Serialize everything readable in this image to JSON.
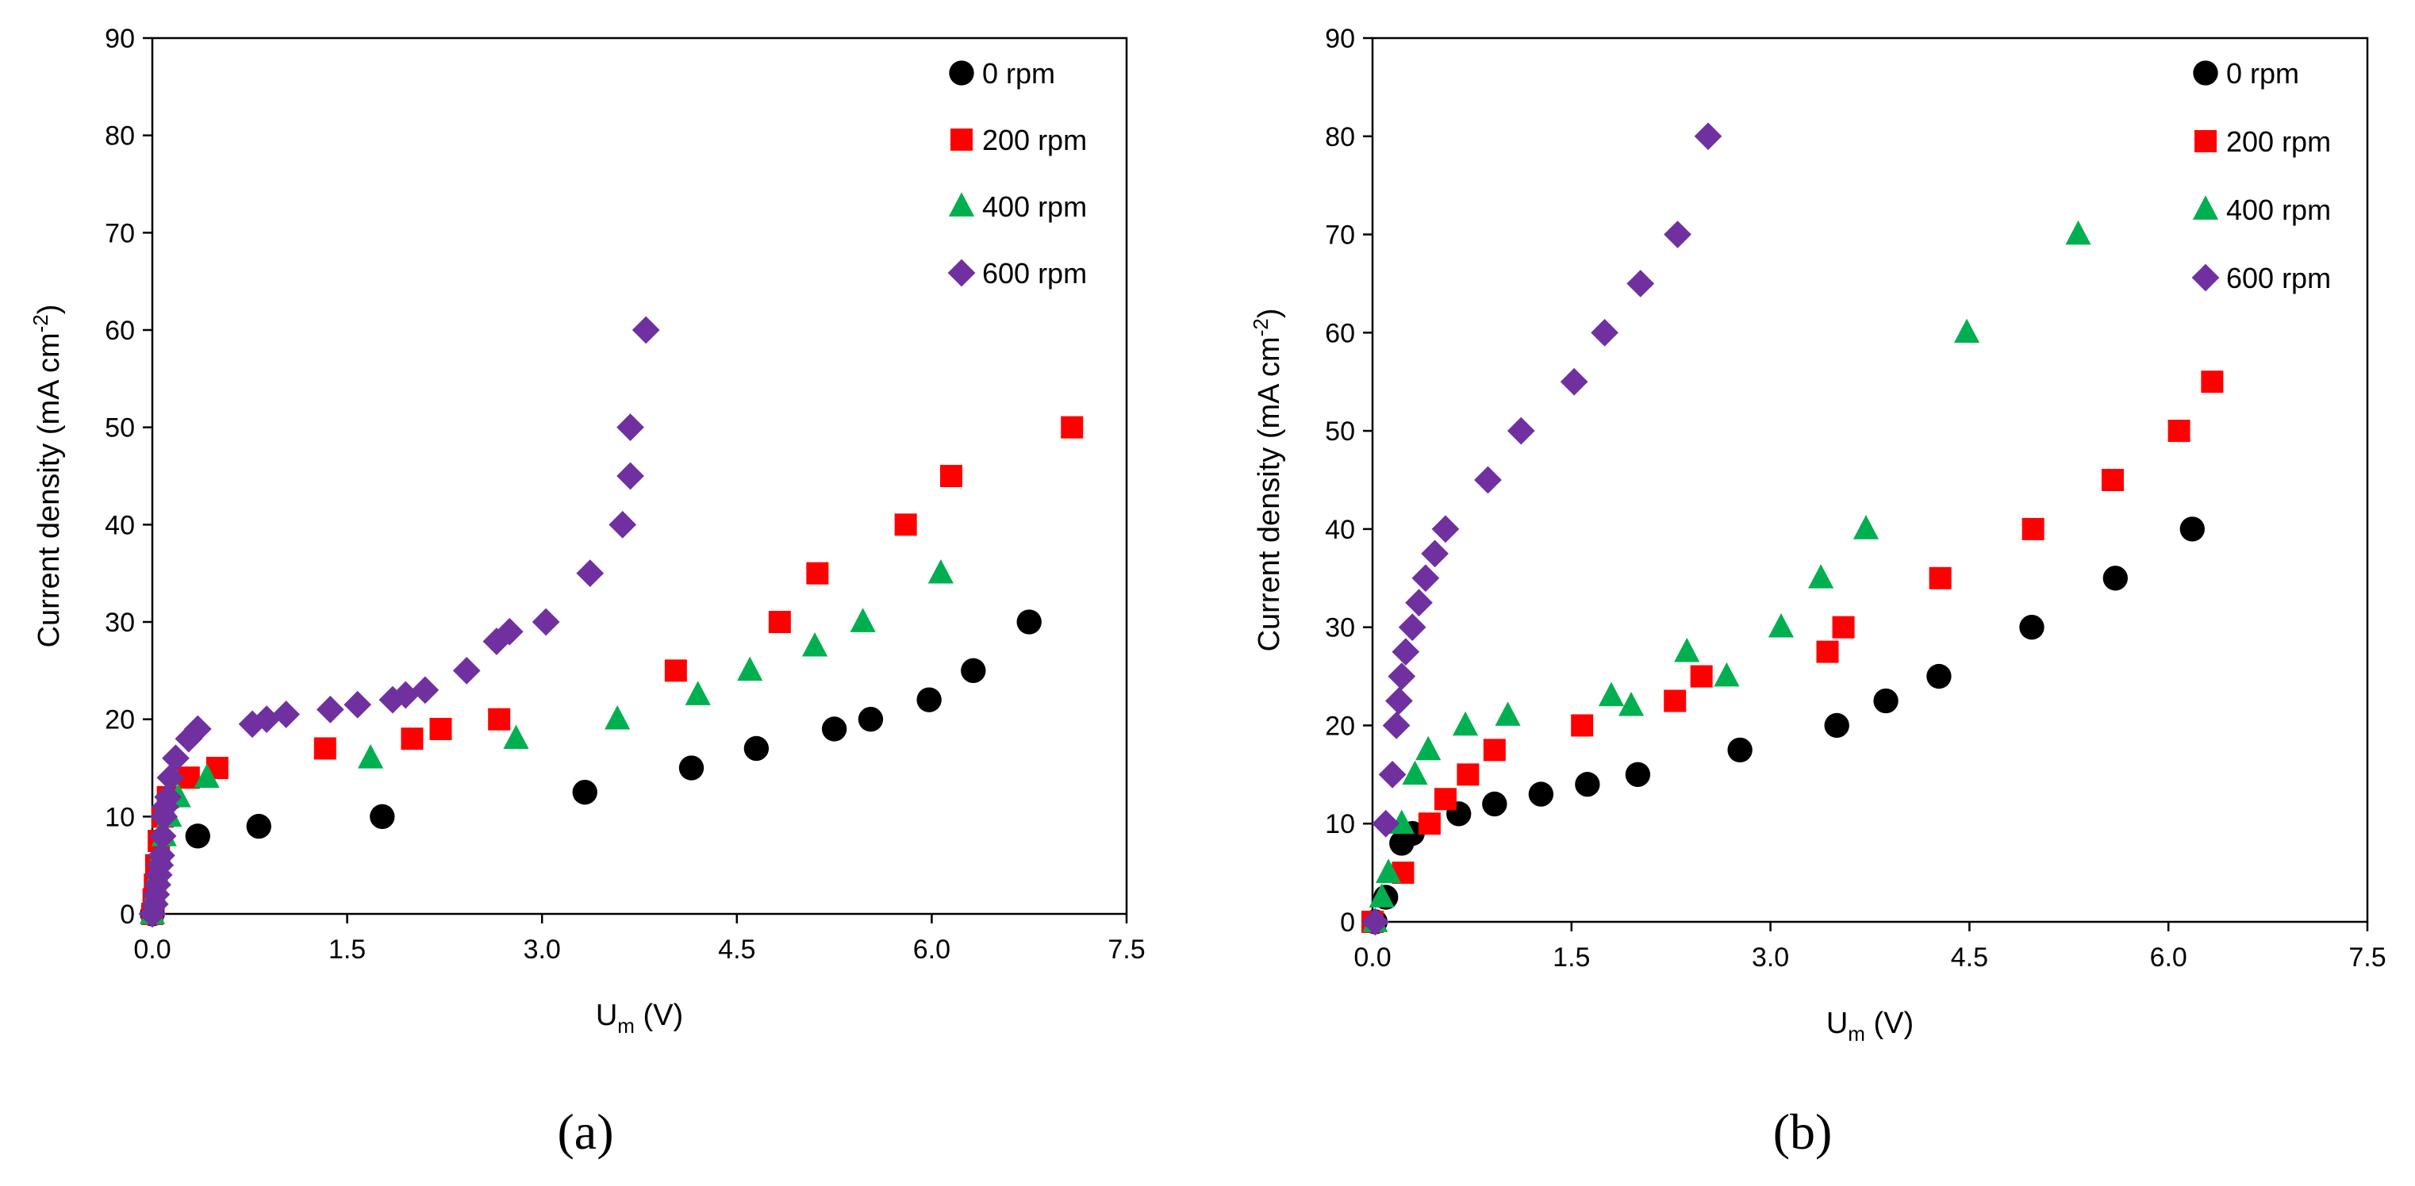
{
  "chart_data": [
    {
      "type": "scatter",
      "panel_label": "(a)",
      "xlabel_main": "U",
      "xlabel_sub": "m",
      "xlabel_tail": " (V)",
      "ylabel_main": "Current density (mA cm",
      "ylabel_sup": "-2",
      "ylabel_tail": ")",
      "xlim": [
        0,
        7.5
      ],
      "ylim": [
        0,
        90
      ],
      "xticks": [
        "0.0",
        "1.5",
        "3.0",
        "4.5",
        "6.0",
        "7.5"
      ],
      "yticks": [
        "0",
        "10",
        "20",
        "30",
        "40",
        "50",
        "60",
        "70",
        "80",
        "90"
      ],
      "legend": "top-right",
      "grid": false,
      "series": [
        {
          "name": "0 rpm",
          "marker": "circle",
          "color": "#000000",
          "points": [
            [
              0.0,
              0
            ],
            [
              0.35,
              8
            ],
            [
              0.82,
              9
            ],
            [
              1.77,
              10
            ],
            [
              3.33,
              12.5
            ],
            [
              4.15,
              15
            ],
            [
              4.65,
              17
            ],
            [
              5.25,
              19
            ],
            [
              5.53,
              20
            ],
            [
              5.98,
              22
            ],
            [
              6.32,
              25
            ],
            [
              6.75,
              30
            ]
          ]
        },
        {
          "name": "200 rpm",
          "marker": "square",
          "color": "#ff0000",
          "points": [
            [
              0.0,
              0
            ],
            [
              0.01,
              1.5
            ],
            [
              0.02,
              3
            ],
            [
              0.03,
              5
            ],
            [
              0.05,
              7.5
            ],
            [
              0.08,
              10
            ],
            [
              0.12,
              12
            ],
            [
              0.28,
              14
            ],
            [
              0.5,
              15
            ],
            [
              1.33,
              17
            ],
            [
              2.0,
              18
            ],
            [
              2.22,
              19
            ],
            [
              2.67,
              20
            ],
            [
              4.03,
              25
            ],
            [
              4.83,
              30
            ],
            [
              5.12,
              35
            ],
            [
              5.8,
              40
            ],
            [
              6.15,
              45
            ],
            [
              7.08,
              50
            ]
          ]
        },
        {
          "name": "400 rpm",
          "marker": "triangle",
          "color": "#00b050",
          "points": [
            [
              0.0,
              0
            ],
            [
              0.02,
              2
            ],
            [
              0.04,
              4
            ],
            [
              0.06,
              6
            ],
            [
              0.09,
              8
            ],
            [
              0.13,
              10
            ],
            [
              0.2,
              12
            ],
            [
              0.42,
              14
            ],
            [
              1.68,
              16
            ],
            [
              2.8,
              18
            ],
            [
              3.58,
              20
            ],
            [
              4.2,
              22.5
            ],
            [
              4.6,
              25
            ],
            [
              5.1,
              27.5
            ],
            [
              5.47,
              30
            ],
            [
              6.07,
              35
            ]
          ]
        },
        {
          "name": "600 rpm",
          "marker": "diamond",
          "color": "#7030a0",
          "points": [
            [
              0.0,
              0
            ],
            [
              0.02,
              1
            ],
            [
              0.03,
              2
            ],
            [
              0.04,
              3
            ],
            [
              0.05,
              4
            ],
            [
              0.06,
              5
            ],
            [
              0.07,
              6
            ],
            [
              0.08,
              8
            ],
            [
              0.09,
              10
            ],
            [
              0.1,
              11
            ],
            [
              0.12,
              12
            ],
            [
              0.14,
              14
            ],
            [
              0.18,
              16
            ],
            [
              0.28,
              18
            ],
            [
              0.35,
              19
            ],
            [
              0.77,
              19.5
            ],
            [
              0.88,
              20
            ],
            [
              1.03,
              20.5
            ],
            [
              1.37,
              21
            ],
            [
              1.58,
              21.5
            ],
            [
              1.85,
              22
            ],
            [
              1.95,
              22.5
            ],
            [
              2.1,
              23
            ],
            [
              2.42,
              25
            ],
            [
              2.65,
              28
            ],
            [
              2.75,
              29
            ],
            [
              3.03,
              30
            ],
            [
              3.37,
              35
            ],
            [
              3.62,
              40
            ],
            [
              3.68,
              45
            ],
            [
              3.68,
              50
            ],
            [
              3.8,
              60
            ]
          ]
        }
      ]
    },
    {
      "type": "scatter",
      "panel_label": "(b)",
      "xlabel_main": "U",
      "xlabel_sub": "m",
      "xlabel_tail": " (V)",
      "ylabel_main": "Current density (mA cm",
      "ylabel_sup": "-2",
      "ylabel_tail": ")",
      "xlim": [
        0,
        7.5
      ],
      "ylim": [
        0,
        90
      ],
      "xticks": [
        "0.0",
        "1.5",
        "3.0",
        "4.5",
        "6.0",
        "7.5"
      ],
      "yticks": [
        "0",
        "10",
        "20",
        "30",
        "40",
        "50",
        "60",
        "70",
        "80",
        "90"
      ],
      "legend": "top-right",
      "grid": false,
      "series": [
        {
          "name": "0 rpm",
          "marker": "circle",
          "color": "#000000",
          "points": [
            [
              0.02,
              0
            ],
            [
              0.1,
              2.5
            ],
            [
              0.22,
              8
            ],
            [
              0.3,
              9
            ],
            [
              0.65,
              11
            ],
            [
              0.92,
              12
            ],
            [
              1.27,
              13
            ],
            [
              1.62,
              14
            ],
            [
              2.0,
              15
            ],
            [
              2.77,
              17.5
            ],
            [
              3.5,
              20
            ],
            [
              3.87,
              22.5
            ],
            [
              4.27,
              25
            ],
            [
              4.97,
              30
            ],
            [
              5.6,
              35
            ],
            [
              6.18,
              40
            ]
          ]
        },
        {
          "name": "200 rpm",
          "marker": "square",
          "color": "#ff0000",
          "points": [
            [
              0.0,
              0
            ],
            [
              0.23,
              5
            ],
            [
              0.43,
              10
            ],
            [
              0.55,
              12.5
            ],
            [
              0.72,
              15
            ],
            [
              0.92,
              17.5
            ],
            [
              1.58,
              20
            ],
            [
              2.28,
              22.5
            ],
            [
              2.48,
              25
            ],
            [
              3.43,
              27.5
            ],
            [
              3.55,
              30
            ],
            [
              4.28,
              35
            ],
            [
              4.98,
              40
            ],
            [
              5.58,
              45
            ],
            [
              6.08,
              50
            ],
            [
              6.33,
              55
            ]
          ]
        },
        {
          "name": "400 rpm",
          "marker": "triangle",
          "color": "#00b050",
          "points": [
            [
              0.02,
              0
            ],
            [
              0.07,
              2.5
            ],
            [
              0.12,
              5
            ],
            [
              0.22,
              10
            ],
            [
              0.32,
              15
            ],
            [
              0.42,
              17.5
            ],
            [
              0.7,
              20
            ],
            [
              1.02,
              21
            ],
            [
              1.8,
              23
            ],
            [
              1.95,
              22
            ],
            [
              2.37,
              27.5
            ],
            [
              2.67,
              25
            ],
            [
              3.08,
              30
            ],
            [
              3.38,
              35
            ],
            [
              3.72,
              40
            ],
            [
              4.48,
              60
            ],
            [
              5.32,
              70
            ]
          ]
        },
        {
          "name": "600 rpm",
          "marker": "diamond",
          "color": "#7030a0",
          "points": [
            [
              0.02,
              0
            ],
            [
              0.1,
              10
            ],
            [
              0.15,
              15
            ],
            [
              0.18,
              20
            ],
            [
              0.2,
              22.5
            ],
            [
              0.22,
              25
            ],
            [
              0.25,
              27.5
            ],
            [
              0.3,
              30
            ],
            [
              0.35,
              32.5
            ],
            [
              0.4,
              35
            ],
            [
              0.47,
              37.5
            ],
            [
              0.55,
              40
            ],
            [
              0.87,
              45
            ],
            [
              1.12,
              50
            ],
            [
              1.52,
              55
            ],
            [
              1.75,
              60
            ],
            [
              2.02,
              65
            ],
            [
              2.3,
              70
            ],
            [
              2.53,
              80
            ]
          ]
        }
      ]
    }
  ]
}
